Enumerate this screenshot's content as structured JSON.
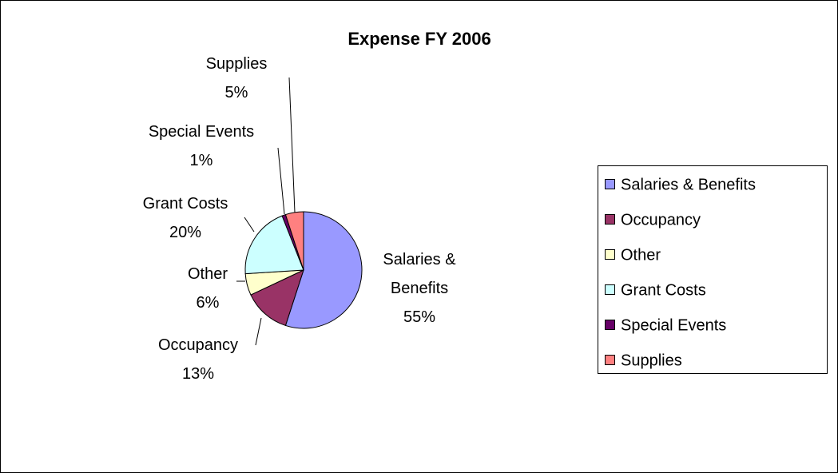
{
  "chart_data": {
    "type": "pie",
    "title": "Expense FY 2006",
    "categories": [
      "Salaries & Benefits",
      "Occupancy",
      "Other",
      "Grant Costs",
      "Special Events",
      "Supplies"
    ],
    "values": [
      55,
      13,
      6,
      20,
      1,
      5
    ],
    "value_labels": [
      "55%",
      "13%",
      "6%",
      "20%",
      "1%",
      "5%"
    ],
    "colors": [
      "#9999ff",
      "#993366",
      "#ffffcc",
      "#ccffff",
      "#660066",
      "#ff8080"
    ],
    "legend": "right"
  }
}
